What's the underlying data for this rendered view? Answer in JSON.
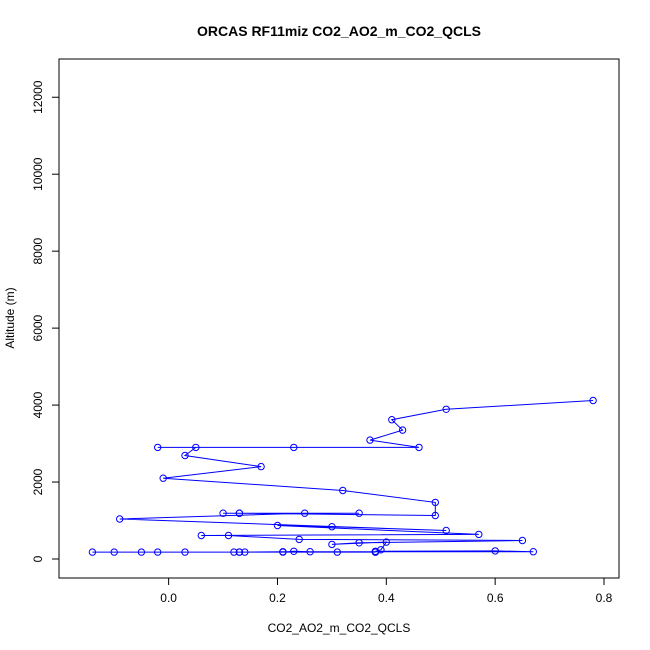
{
  "chart_data": {
    "type": "line",
    "title": "ORCAS RF11miz CO2_AO2_m_CO2_QCLS",
    "xlabel": "CO2_AO2_m_CO2_QCLS",
    "ylabel": "Altitude (m)",
    "xlim": [
      -0.15,
      0.8
    ],
    "ylim": [
      0,
      12500
    ],
    "xticks": [
      0.0,
      0.2,
      0.4,
      0.6,
      0.8
    ],
    "xtick_labels": [
      "0.0",
      "0.2",
      "0.4",
      "0.6",
      "0.8"
    ],
    "yticks": [
      0,
      2000,
      4000,
      6000,
      8000,
      10000,
      12000
    ],
    "ytick_labels": [
      "0",
      "2000",
      "4000",
      "6000",
      "8000",
      "10000",
      "12000"
    ],
    "grid": false,
    "color": "#0000ff",
    "series": [
      {
        "x": [
          0.78,
          0.51,
          0.41,
          0.43,
          0.37,
          0.46,
          0.23,
          -0.02,
          0.05,
          0.03,
          0.17,
          -0.01,
          0.32,
          0.49,
          0.49,
          0.13,
          0.35,
          0.1,
          0.13,
          0.25,
          -0.09,
          0.51,
          0.3,
          0.2,
          0.57,
          0.06,
          0.11,
          0.24,
          0.65,
          0.35,
          0.3,
          0.4,
          0.39,
          0.38,
          0.6,
          0.67,
          0.26,
          0.23,
          0.21,
          0.13,
          0.12,
          0.14,
          0.03,
          0.31,
          0.38,
          -0.05,
          -0.02,
          -0.1,
          -0.14,
          0.38,
          0.13,
          0.21,
          0.38
        ],
        "y": [
          4120,
          3890,
          3620,
          3350,
          3090,
          2900,
          2900,
          2900,
          2900,
          2690,
          2400,
          2100,
          1780,
          1470,
          1130,
          1190,
          1190,
          1190,
          1190,
          1190,
          1040,
          740,
          840,
          870,
          640,
          610,
          610,
          510,
          480,
          420,
          380,
          440,
          240,
          200,
          210,
          190,
          190,
          200,
          180,
          180,
          180,
          180,
          180,
          180,
          180,
          180,
          180,
          180,
          180,
          180,
          180,
          190,
          190
        ]
      }
    ]
  }
}
